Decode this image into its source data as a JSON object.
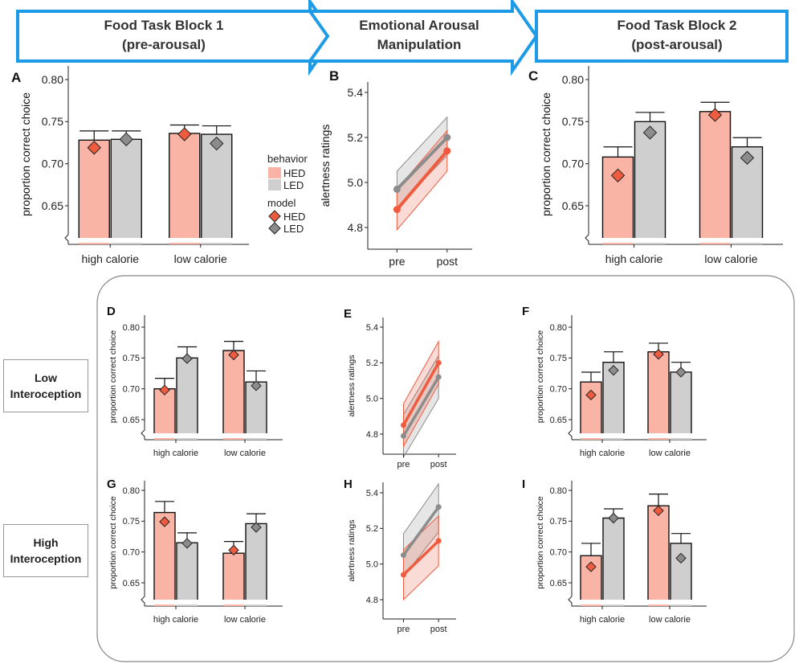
{
  "header": {
    "stages": [
      {
        "line1": "Food Task Block 1",
        "line2": "(pre-arousal)"
      },
      {
        "line1": "Emotional Arousal",
        "line2": "Manipulation"
      },
      {
        "line1": "Food Task Block 2",
        "line2": "(post-arousal)"
      }
    ]
  },
  "side_labels": {
    "low": {
      "line1": "Low",
      "line2": "Interoception"
    },
    "high": {
      "line1": "High",
      "line2": "Interoception"
    }
  },
  "legend": {
    "behavior_title": "behavior",
    "model_title": "model",
    "hed_label": "HED",
    "led_label": "LED"
  },
  "colors": {
    "hed_fill": "#f9b4a5",
    "hed_marker": "#ef5b3f",
    "led_fill": "#cfcfcf",
    "led_marker": "#8c8c8c",
    "header_arrow_stroke": "#1e9be6"
  },
  "chart_data": [
    {
      "panel": "A",
      "type": "bar",
      "ylabel": "proportion correct choice",
      "ylim": [
        0.6,
        0.8
      ],
      "yticks": [
        "0.65",
        "0.70",
        "0.75",
        "0.80"
      ],
      "categories": [
        "high calorie",
        "low calorie"
      ],
      "series": [
        {
          "name": "HED",
          "values": [
            0.728,
            0.736
          ],
          "error": [
            0.011,
            0.01
          ],
          "model": [
            0.719,
            0.735
          ]
        },
        {
          "name": "LED",
          "values": [
            0.729,
            0.735
          ],
          "error": [
            0.01,
            0.01
          ],
          "model": [
            0.729,
            0.724
          ]
        }
      ]
    },
    {
      "panel": "B",
      "type": "line",
      "ylabel": "alertness ratings",
      "ylim": [
        4.7,
        5.45
      ],
      "yticks": [
        "4.8",
        "5.0",
        "5.2",
        "5.4"
      ],
      "categories": [
        "pre",
        "post"
      ],
      "series": [
        {
          "name": "HED",
          "values": [
            4.88,
            5.14
          ],
          "ci_low": [
            4.79,
            5.05
          ],
          "ci_high": [
            4.97,
            5.23
          ]
        },
        {
          "name": "LED",
          "values": [
            4.97,
            5.2
          ],
          "ci_low": [
            4.89,
            5.12
          ],
          "ci_high": [
            5.05,
            5.29
          ]
        }
      ]
    },
    {
      "panel": "C",
      "type": "bar",
      "ylabel": "proportion correct choice",
      "ylim": [
        0.6,
        0.8
      ],
      "yticks": [
        "0.65",
        "0.70",
        "0.75",
        "0.80"
      ],
      "categories": [
        "high calorie",
        "low calorie"
      ],
      "series": [
        {
          "name": "HED",
          "values": [
            0.708,
            0.762
          ],
          "error": [
            0.012,
            0.011
          ],
          "model": [
            0.686,
            0.758
          ]
        },
        {
          "name": "LED",
          "values": [
            0.75,
            0.72
          ],
          "error": [
            0.011,
            0.011
          ],
          "model": [
            0.737,
            0.707
          ]
        }
      ]
    },
    {
      "panel": "D",
      "type": "bar",
      "ylabel": "proportion correct choice",
      "ylim": [
        0.6,
        0.8
      ],
      "yticks": [
        "0.65",
        "0.70",
        "0.75",
        "0.80"
      ],
      "categories": [
        "high calorie",
        "low calorie"
      ],
      "series": [
        {
          "name": "HED",
          "values": [
            0.7,
            0.762
          ],
          "error": [
            0.017,
            0.015
          ],
          "model": [
            0.698,
            0.755
          ]
        },
        {
          "name": "LED",
          "values": [
            0.75,
            0.711
          ],
          "error": [
            0.018,
            0.018
          ],
          "model": [
            0.749,
            0.705
          ]
        }
      ]
    },
    {
      "panel": "E",
      "type": "line",
      "ylabel": "alertness ratings",
      "ylim": [
        4.7,
        5.45
      ],
      "yticks": [
        "4.8",
        "5.0",
        "5.2",
        "5.4"
      ],
      "categories": [
        "pre",
        "post"
      ],
      "series": [
        {
          "name": "HED",
          "values": [
            4.85,
            5.2
          ],
          "ci_low": [
            4.73,
            5.08
          ],
          "ci_high": [
            4.97,
            5.32
          ]
        },
        {
          "name": "LED",
          "values": [
            4.79,
            5.12
          ],
          "ci_low": [
            4.67,
            5.0
          ],
          "ci_high": [
            4.91,
            5.24
          ]
        }
      ]
    },
    {
      "panel": "F",
      "type": "bar",
      "ylabel": "proportion correct choice",
      "ylim": [
        0.6,
        0.8
      ],
      "yticks": [
        "0.65",
        "0.70",
        "0.75",
        "0.80"
      ],
      "categories": [
        "high calorie",
        "low calorie"
      ],
      "series": [
        {
          "name": "HED",
          "values": [
            0.711,
            0.76
          ],
          "error": [
            0.016,
            0.014
          ],
          "model": [
            0.69,
            0.756
          ]
        },
        {
          "name": "LED",
          "values": [
            0.743,
            0.727
          ],
          "error": [
            0.017,
            0.016
          ],
          "model": [
            0.73,
            0.727
          ]
        }
      ]
    },
    {
      "panel": "G",
      "type": "bar",
      "ylabel": "proportion correct choice",
      "ylim": [
        0.6,
        0.8
      ],
      "yticks": [
        "0.65",
        "0.70",
        "0.75",
        "0.80"
      ],
      "categories": [
        "high calorie",
        "low calorie"
      ],
      "series": [
        {
          "name": "HED",
          "values": [
            0.764,
            0.698
          ],
          "error": [
            0.018,
            0.019
          ],
          "model": [
            0.749,
            0.703
          ]
        },
        {
          "name": "LED",
          "values": [
            0.715,
            0.746
          ],
          "error": [
            0.016,
            0.016
          ],
          "model": [
            0.714,
            0.74
          ]
        }
      ]
    },
    {
      "panel": "H",
      "type": "line",
      "ylabel": "alertness ratings",
      "ylim": [
        4.7,
        5.45
      ],
      "yticks": [
        "4.8",
        "5.0",
        "5.2",
        "5.4"
      ],
      "categories": [
        "pre",
        "post"
      ],
      "series": [
        {
          "name": "HED",
          "values": [
            4.94,
            5.13
          ],
          "ci_low": [
            4.8,
            4.99
          ],
          "ci_high": [
            5.08,
            5.27
          ]
        },
        {
          "name": "LED",
          "values": [
            5.05,
            5.32
          ],
          "ci_low": [
            4.93,
            5.18
          ],
          "ci_high": [
            5.17,
            5.45
          ]
        }
      ]
    },
    {
      "panel": "I",
      "type": "bar",
      "ylabel": "proportion correct choice",
      "ylim": [
        0.6,
        0.8
      ],
      "yticks": [
        "0.65",
        "0.70",
        "0.75",
        "0.80"
      ],
      "categories": [
        "high calorie",
        "low calorie"
      ],
      "series": [
        {
          "name": "HED",
          "values": [
            0.694,
            0.775
          ],
          "error": [
            0.02,
            0.019
          ],
          "model": [
            0.676,
            0.767
          ]
        },
        {
          "name": "LED",
          "values": [
            0.755,
            0.714
          ],
          "error": [
            0.015,
            0.016
          ],
          "model": [
            0.755,
            0.69
          ]
        }
      ]
    }
  ]
}
